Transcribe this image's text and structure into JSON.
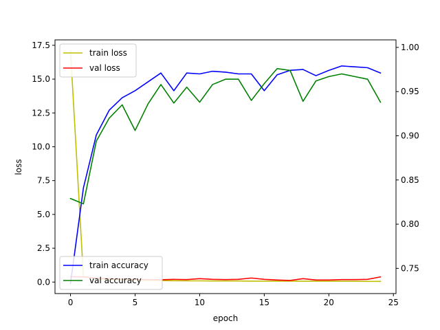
{
  "chart_data": {
    "type": "line",
    "xlabel": "epoch",
    "ylabel": "loss",
    "x": [
      0,
      1,
      2,
      3,
      4,
      5,
      6,
      7,
      8,
      9,
      10,
      11,
      12,
      13,
      14,
      15,
      16,
      17,
      18,
      19,
      20,
      21,
      22,
      23,
      24
    ],
    "xlim": [
      -1.2,
      25.2
    ],
    "xticks": [
      0,
      5,
      10,
      15,
      20,
      25
    ],
    "ylim_left": [
      -0.85,
      17.9
    ],
    "yticks_left": [
      0.0,
      2.5,
      5.0,
      7.5,
      10.0,
      12.5,
      15.0,
      17.5
    ],
    "ytick_labels_left": [
      "0.0",
      "2.5",
      "5.0",
      "7.5",
      "10.0",
      "12.5",
      "15.0",
      "17.5"
    ],
    "ylim_right": [
      0.7215,
      1.0085
    ],
    "yticks_right": [
      0.75,
      0.8,
      0.85,
      0.9,
      0.95,
      1.0
    ],
    "ytick_labels_right": [
      "0.75",
      "0.80",
      "0.85",
      "0.90",
      "0.95",
      "1.00"
    ],
    "grid": false,
    "series": [
      {
        "name": "train loss",
        "axis": "left",
        "color": "#bfbf00",
        "values": [
          17.1,
          0.42,
          0.22,
          0.18,
          0.15,
          0.12,
          0.12,
          0.11,
          0.1,
          0.09,
          0.09,
          0.08,
          0.08,
          0.08,
          0.07,
          0.07,
          0.07,
          0.07,
          0.06,
          0.06,
          0.06,
          0.06,
          0.06,
          0.05,
          0.05
        ]
      },
      {
        "name": "val loss",
        "axis": "left",
        "color": "#ff0000",
        "values": [
          0.4,
          0.38,
          0.3,
          0.25,
          0.22,
          0.2,
          0.18,
          0.17,
          0.2,
          0.18,
          0.25,
          0.2,
          0.18,
          0.2,
          0.3,
          0.2,
          0.15,
          0.12,
          0.25,
          0.15,
          0.15,
          0.18,
          0.18,
          0.2,
          0.38
        ]
      },
      {
        "name": "train accuracy",
        "axis": "right",
        "color": "#0000ff",
        "values": [
          0.733,
          0.841,
          0.901,
          0.929,
          0.943,
          0.951,
          0.961,
          0.971,
          0.951,
          0.971,
          0.97,
          0.973,
          0.972,
          0.97,
          0.97,
          0.951,
          0.969,
          0.974,
          0.975,
          0.968,
          0.974,
          0.979,
          0.978,
          0.977,
          0.971
        ]
      },
      {
        "name": "val accuracy",
        "axis": "right",
        "color": "#008000",
        "values": [
          0.829,
          0.823,
          0.894,
          0.92,
          0.935,
          0.906,
          0.936,
          0.958,
          0.937,
          0.955,
          0.938,
          0.958,
          0.964,
          0.964,
          0.94,
          0.959,
          0.976,
          0.974,
          0.939,
          0.962,
          0.967,
          0.97,
          0.967,
          0.964,
          0.938
        ]
      }
    ],
    "legends": [
      {
        "position": "upper-left",
        "entries": [
          "train loss",
          "val loss"
        ]
      },
      {
        "position": "lower-left",
        "entries": [
          "train accuracy",
          "val accuracy"
        ]
      }
    ]
  }
}
